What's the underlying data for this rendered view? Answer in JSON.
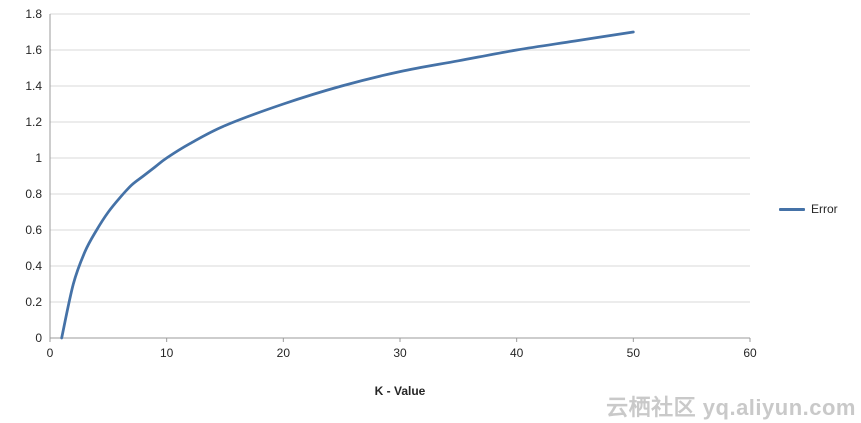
{
  "chart_data": {
    "type": "line",
    "title": "",
    "xlabel": "K - Value",
    "ylabel": "",
    "xlim": [
      0,
      60
    ],
    "ylim": [
      0,
      1.8
    ],
    "x_ticks": [
      0,
      10,
      20,
      30,
      40,
      50,
      60
    ],
    "y_ticks": [
      0,
      0.2,
      0.4,
      0.6,
      0.8,
      1,
      1.2,
      1.4,
      1.6,
      1.8
    ],
    "grid": "horizontal",
    "legend_position": "right",
    "series": [
      {
        "name": "Error",
        "color": "#4572a7",
        "x": [
          1,
          2,
          3,
          4,
          5,
          6,
          7,
          8,
          9,
          10,
          12,
          15,
          20,
          25,
          30,
          35,
          40,
          45,
          50
        ],
        "y": [
          0,
          0.3,
          0.48,
          0.6,
          0.7,
          0.78,
          0.85,
          0.9,
          0.95,
          1.0,
          1.08,
          1.18,
          1.3,
          1.4,
          1.48,
          1.54,
          1.6,
          1.65,
          1.7
        ]
      }
    ]
  },
  "watermark": {
    "text": "云栖社区 yq.aliyun.com"
  },
  "colors": {
    "gridline": "#d9d9d9",
    "axis": "#9b9b9b",
    "tick_text": "#262626",
    "background": "#ffffff"
  }
}
